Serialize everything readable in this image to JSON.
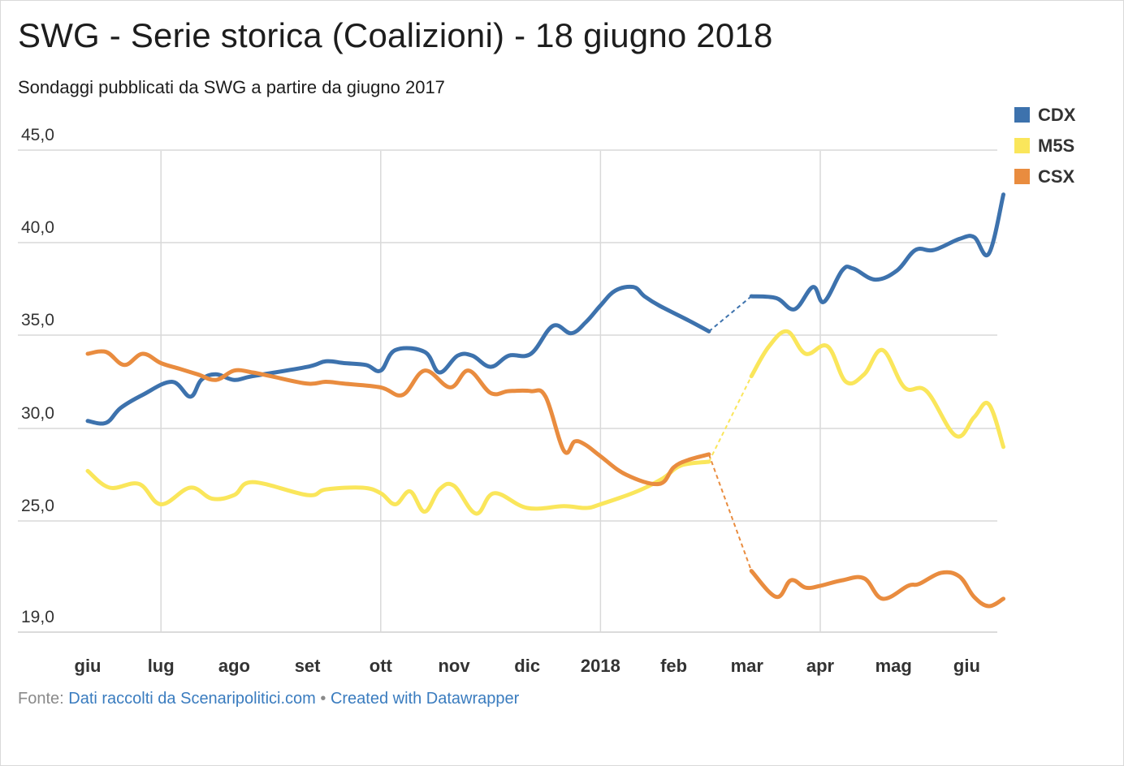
{
  "title": "SWG - Serie storica (Coalizioni) - 18 giugno 2018",
  "subtitle": "Sondaggi pubblicati da SWG a partire da giugno 2017",
  "footer": {
    "prefix": "Fonte: ",
    "source_link": "Dati raccolti da Scenaripolitici.com",
    "separator": " • ",
    "credit_link": "Created with Datawrapper"
  },
  "chart_data": {
    "type": "line",
    "title": "SWG - Serie storica (Coalizioni) - 18 giugno 2018",
    "subtitle": "Sondaggi pubblicati da SWG a partire da giugno 2017",
    "xlabel": "",
    "ylabel": "",
    "x_unit": "months since June 2017",
    "x_range": [
      0,
      12.5
    ],
    "ylim": [
      19,
      45
    ],
    "y_ticks": [
      19,
      25,
      30,
      35,
      40,
      45
    ],
    "y_tick_labels": [
      "19,0",
      "25,0",
      "30,0",
      "35,0",
      "40,0",
      "45,0"
    ],
    "x_ticks": [
      0,
      1,
      2,
      3,
      4,
      5,
      6,
      7,
      8,
      9,
      10,
      11,
      12
    ],
    "x_tick_labels": [
      "giu",
      "lug",
      "ago",
      "set",
      "ott",
      "nov",
      "dic",
      "2018",
      "feb",
      "mar",
      "apr",
      "mag",
      "giu"
    ],
    "x_gridlines": [
      1,
      4,
      7,
      10
    ],
    "grid": true,
    "legend_position": "top-right",
    "gap_interval": [
      8.48,
      9.06
    ],
    "series": [
      {
        "name": "CDX",
        "color": "#3d72ad",
        "x": [
          0,
          0.25,
          0.45,
          0.75,
          1.15,
          1.4,
          1.55,
          1.75,
          2,
          2.25,
          3,
          3.25,
          3.5,
          3.8,
          4.0,
          4.2,
          4.6,
          4.8,
          5.05,
          5.25,
          5.5,
          5.75,
          6.05,
          6.35,
          6.6,
          6.8,
          7,
          7.2,
          7.45,
          7.6,
          7.8,
          8.2,
          8.48,
          9.06,
          9.4,
          9.65,
          9.9,
          10.05,
          10.3,
          10.45,
          10.75,
          11.05,
          11.3,
          11.55,
          11.9,
          12.1,
          12.3,
          12.5
        ],
        "y": [
          30.4,
          30.3,
          31.1,
          31.8,
          32.5,
          31.7,
          32.6,
          32.9,
          32.6,
          32.8,
          33.3,
          33.6,
          33.5,
          33.4,
          33.1,
          34.2,
          34.1,
          33.0,
          33.9,
          33.9,
          33.3,
          33.9,
          34.0,
          35.5,
          35.1,
          35.7,
          36.6,
          37.4,
          37.6,
          37.1,
          36.6,
          35.8,
          35.2,
          37.1,
          37.0,
          36.4,
          37.6,
          36.8,
          38.5,
          38.6,
          38.0,
          38.5,
          39.6,
          39.6,
          40.2,
          40.3,
          39.4,
          42.6
        ]
      },
      {
        "name": "M5S",
        "color": "#fae65b",
        "x": [
          0,
          0.3,
          0.7,
          1.0,
          1.4,
          1.7,
          2.0,
          2.25,
          3.0,
          3.25,
          3.75,
          4.0,
          4.2,
          4.4,
          4.6,
          4.8,
          5.0,
          5.3,
          5.55,
          6.0,
          6.5,
          6.8,
          7.0,
          7.5,
          7.85,
          8.1,
          8.48,
          9.06,
          9.3,
          9.55,
          9.8,
          10.1,
          10.35,
          10.6,
          10.85,
          11.15,
          11.45,
          11.85,
          12.1,
          12.3,
          12.5
        ],
        "y": [
          27.7,
          26.8,
          27.0,
          25.9,
          26.8,
          26.2,
          26.4,
          27.1,
          26.4,
          26.7,
          26.8,
          26.5,
          25.9,
          26.6,
          25.5,
          26.7,
          26.9,
          25.4,
          26.5,
          25.7,
          25.8,
          25.7,
          25.9,
          26.6,
          27.3,
          28.0,
          28.2,
          32.8,
          34.4,
          35.2,
          34.0,
          34.4,
          32.5,
          32.9,
          34.2,
          32.2,
          32.0,
          29.6,
          30.6,
          31.3,
          29.0
        ]
      },
      {
        "name": "CSX",
        "color": "#e98c3f",
        "x": [
          0,
          0.25,
          0.5,
          0.75,
          1.0,
          1.25,
          1.5,
          1.75,
          2.0,
          2.25,
          2.5,
          3.0,
          3.25,
          3.5,
          4.0,
          4.3,
          4.6,
          4.95,
          5.2,
          5.5,
          5.75,
          6.05,
          6.25,
          6.5,
          6.65,
          6.8,
          7.0,
          7.35,
          7.8,
          8.0,
          8.2,
          8.48,
          9.06,
          9.4,
          9.6,
          9.8,
          10.0,
          10.3,
          10.6,
          10.85,
          11.2,
          11.35,
          11.65,
          11.9,
          12.1,
          12.3,
          12.5
        ],
        "y": [
          34.0,
          34.1,
          33.4,
          34.0,
          33.5,
          33.2,
          32.9,
          32.6,
          33.1,
          33.0,
          32.8,
          32.4,
          32.5,
          32.4,
          32.2,
          31.8,
          33.1,
          32.2,
          33.1,
          31.9,
          32.0,
          32.0,
          31.7,
          28.8,
          29.3,
          29.1,
          28.5,
          27.5,
          27.0,
          27.9,
          28.3,
          28.6,
          22.3,
          20.9,
          21.8,
          21.4,
          21.5,
          21.8,
          21.9,
          20.8,
          21.5,
          21.6,
          22.2,
          22.0,
          20.9,
          20.4,
          20.8
        ]
      }
    ]
  }
}
